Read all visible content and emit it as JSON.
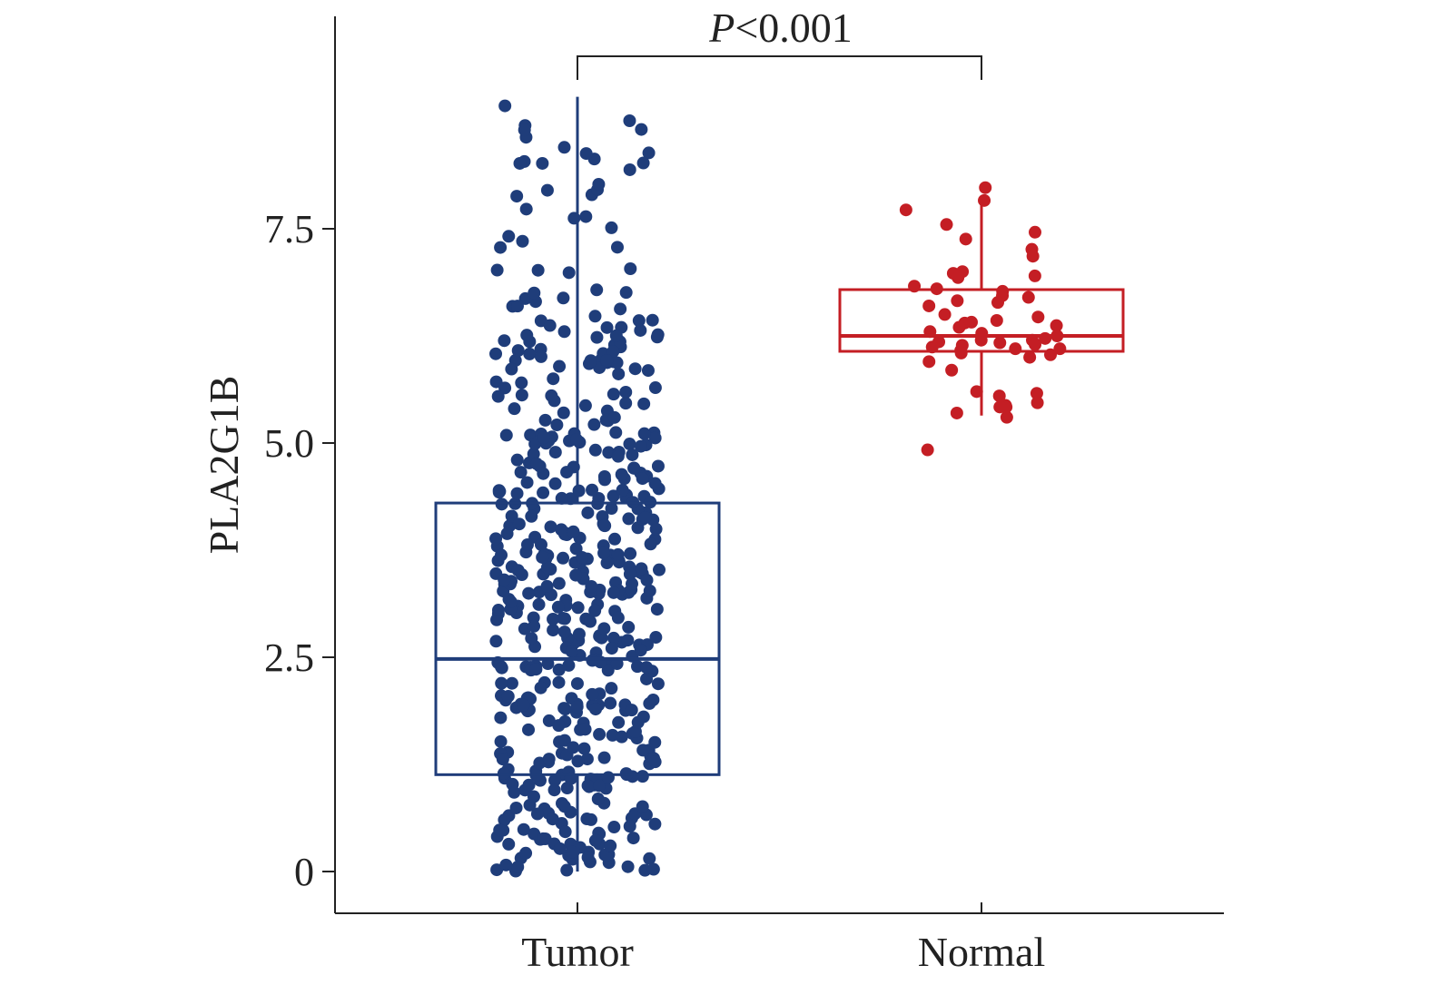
{
  "chart_data": {
    "type": "box-jitter",
    "title": "",
    "annotation": {
      "prefix": "P",
      "text": "<0.001"
    },
    "ylabel": "PLA2G1B",
    "xlabel": "",
    "ylim": [
      -0.5,
      9.5
    ],
    "yticks": [
      0,
      2.5,
      5.0,
      7.5
    ],
    "ytick_labels": [
      "0",
      "2.5",
      "5.0",
      "7.5"
    ],
    "categories": [
      "Tumor",
      "Normal"
    ],
    "series": [
      {
        "name": "Tumor",
        "color": "#1f3d7a",
        "box": {
          "q1": 1.13,
          "median": 2.48,
          "q3": 4.3,
          "whisker_low": 0.0,
          "whisker_high": 9.04
        },
        "points_n": 520,
        "points_range": [
          0.0,
          9.05
        ],
        "points_seed": 7
      },
      {
        "name": "Normal",
        "color": "#c41e24",
        "box": {
          "q1": 6.07,
          "median": 6.25,
          "q3": 6.79,
          "whisker_low": 5.32,
          "whisker_high": 7.82
        },
        "points": [
          7.98,
          7.83,
          7.55,
          7.72,
          7.38,
          7.46,
          7.26,
          7.18,
          7.0,
          6.98,
          6.95,
          6.93,
          6.83,
          6.8,
          6.77,
          6.72,
          6.7,
          6.66,
          6.64,
          6.6,
          6.5,
          6.47,
          6.43,
          6.41,
          6.4,
          6.37,
          6.35,
          6.3,
          6.28,
          6.25,
          6.22,
          6.2,
          6.2,
          6.18,
          6.17,
          6.15,
          6.14,
          6.12,
          6.1,
          6.1,
          6.08,
          6.05,
          6.03,
          6.0,
          5.95,
          5.85,
          5.6,
          5.58,
          5.55,
          5.47,
          5.44,
          5.42,
          5.42,
          5.35,
          5.3,
          4.92
        ]
      }
    ],
    "grid": false
  }
}
